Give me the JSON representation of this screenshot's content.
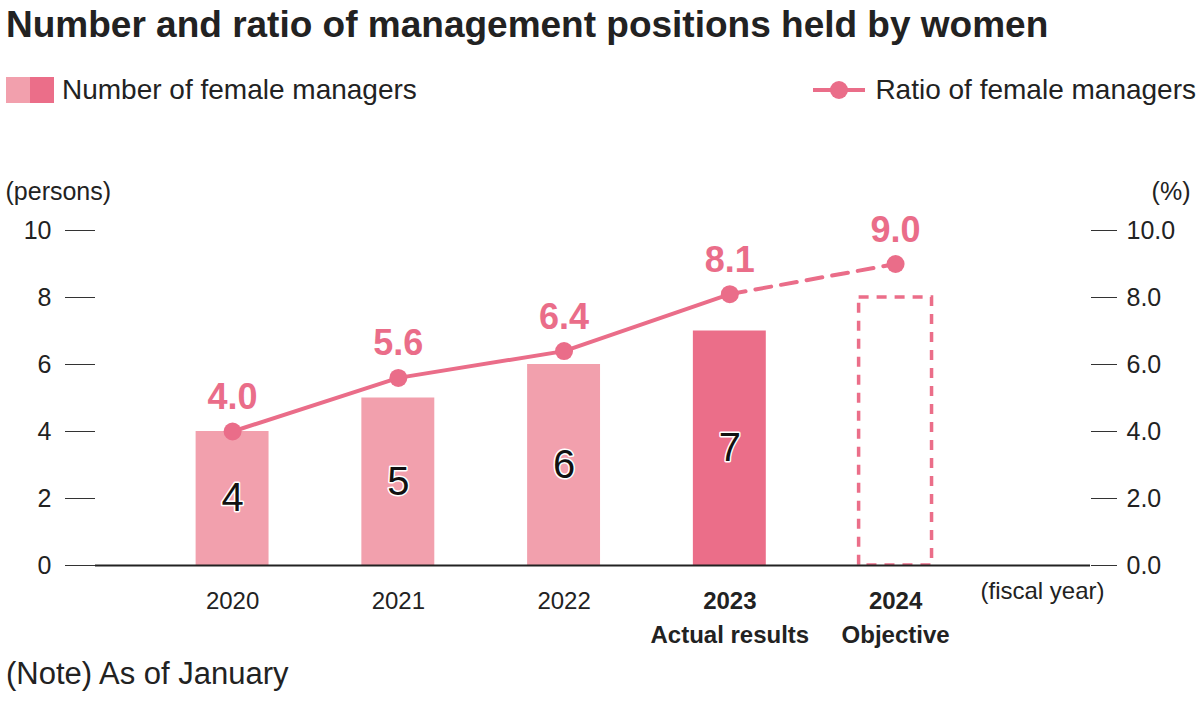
{
  "chart_data": {
    "type": "bar",
    "title": "Number and ratio of management positions held by women",
    "categories": [
      "2020",
      "2021",
      "2022",
      "2023\nActual results",
      "2024\nObjective"
    ],
    "x_label": "(fiscal year)",
    "y_label": "(persons)",
    "y2_label": "(%)",
    "annotation": "(Note) As of January",
    "series": [
      {
        "name": "Number of female managers",
        "type": "bar",
        "color": "#eb6e89",
        "colors": [
          "#f2a0ad",
          "#f2a0ad",
          "#f2a0ad",
          "#eb6e89",
          "none"
        ],
        "values": [
          4,
          5,
          6,
          7,
          8
        ],
        "value_labels": [
          "4",
          "5",
          "6",
          "7",
          null
        ],
        "data_labels": true
      },
      {
        "name": "Ratio of female managers",
        "type": "line",
        "axis": "y2",
        "color": "#ea6d89",
        "marker": "circle",
        "line_style": "solid",
        "values": [
          4.0,
          5.6,
          6.4,
          8.1,
          9.0
        ],
        "value_labels": [
          "4.0",
          "5.6",
          "6.4",
          "8.1",
          "9.0"
        ],
        "data_labels": true
      }
    ],
    "ylim": [
      0,
      10
    ],
    "yticks": [
      0,
      2,
      4,
      6,
      8,
      10
    ],
    "y2lim": [
      0,
      10
    ],
    "y2ticks": [
      {
        "value": 0,
        "label": "0.0"
      },
      {
        "value": 2,
        "label": "2.0"
      },
      {
        "value": 4,
        "label": "4.0"
      },
      {
        "value": 6,
        "label": "6.0"
      },
      {
        "value": 8,
        "label": "8.0"
      },
      {
        "value": 10,
        "label": "10.0"
      }
    ],
    "grid": false,
    "legend": "top"
  }
}
